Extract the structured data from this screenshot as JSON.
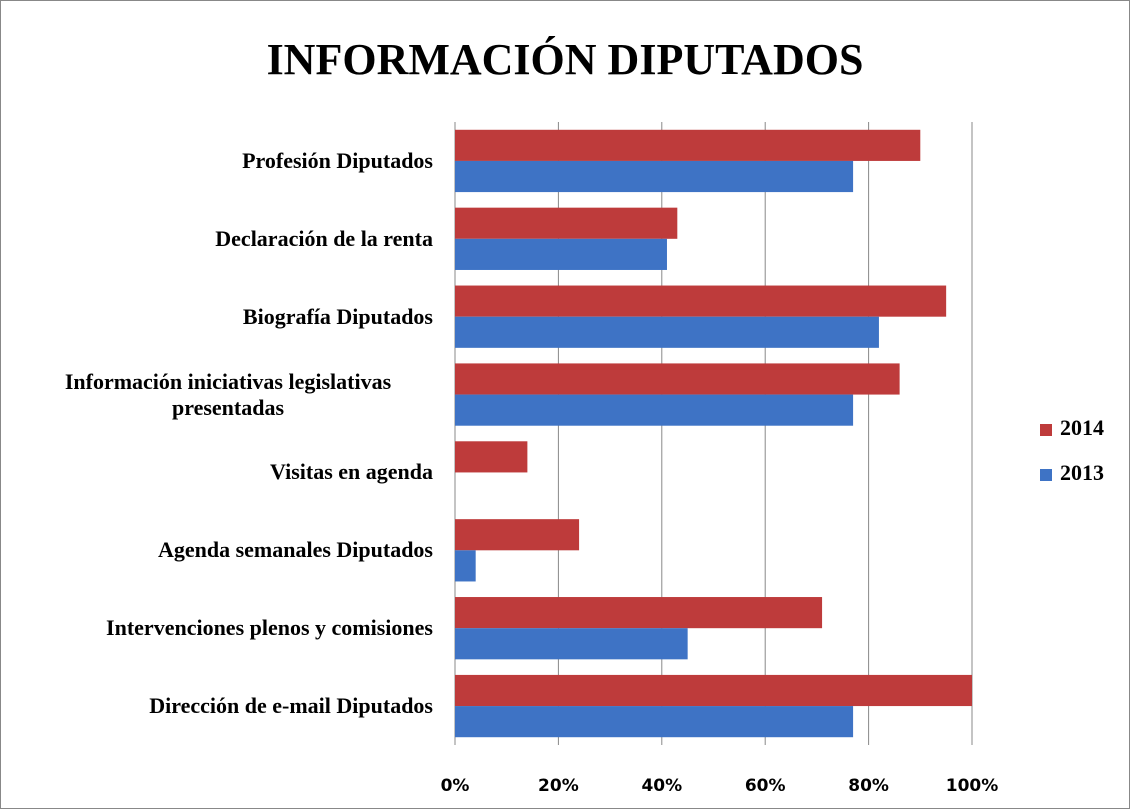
{
  "chart_data": {
    "type": "hbar",
    "title": "INFORMACIÓN DIPUTADOS",
    "categories": [
      "Profesión Diputados",
      "Declaración de la renta",
      "Biografía Diputados",
      "Información iniciativas legislativas presentadas",
      "Visitas en  agenda",
      "Agenda semanales Diputados",
      "Intervenciones plenos y comisiones",
      "Dirección de e-mail Diputados"
    ],
    "series": [
      {
        "name": "2014",
        "color": "#be3b3b",
        "values": [
          90,
          43,
          95,
          86,
          14,
          24,
          71,
          100
        ]
      },
      {
        "name": "2013",
        "color": "#3e73c5",
        "values": [
          77,
          41,
          82,
          77,
          0,
          4,
          45,
          77
        ]
      }
    ],
    "xlim": [
      0,
      100
    ],
    "xticks": [
      {
        "value": 0,
        "label": "0%"
      },
      {
        "value": 20,
        "label": "20%"
      },
      {
        "value": 40,
        "label": "40%"
      },
      {
        "value": 60,
        "label": "60%"
      },
      {
        "value": 80,
        "label": "80%"
      },
      {
        "value": 100,
        "label": "100%"
      }
    ],
    "grid": true,
    "legend": "right"
  }
}
